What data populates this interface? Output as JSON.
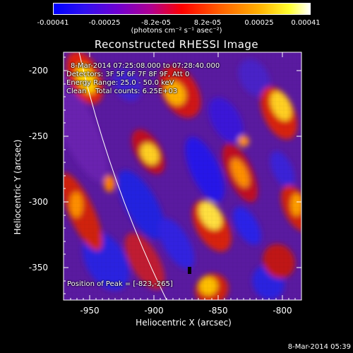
{
  "colorbar": {
    "tick_labels": [
      "-0.00041",
      "-0.00025",
      "-8.2e-05",
      "8.2e-05",
      "0.00025",
      "0.00041"
    ],
    "units": "(photons cm⁻² s⁻¹ asec⁻²)"
  },
  "plot": {
    "title": "Reconstructed RHESSI Image",
    "annotations": {
      "time_range": "8-Mar-2014 07:25:08.000 to 07:28:40.000",
      "detectors": "Detectors: 3F 5F 6F 7F 8F 9F, Att 0",
      "energy_range": "Energy Range: 25.0 - 50.0 keV",
      "method_counts": "Clean    Total counts: 6.25E+03",
      "peak_position": "Position of Peak = [-823,-265]"
    },
    "xlabel": "Heliocentric X (arcsec)",
    "ylabel": "Heliocentric Y (arcsec)",
    "xticks": [
      "-950",
      "-900",
      "-850",
      "-800"
    ],
    "yticks": [
      "-200",
      "-250",
      "-300",
      "-350"
    ],
    "timestamp": "8-Mar-2014 05:39"
  },
  "chart_data": {
    "type": "heatmap",
    "title": "Reconstructed RHESSI Image",
    "xlabel": "Heliocentric X (arcsec)",
    "ylabel": "Heliocentric Y (arcsec)",
    "xlim": [
      -975,
      -790
    ],
    "ylim": [
      -378,
      -190
    ],
    "xticks": [
      -950,
      -900,
      -850,
      -800
    ],
    "yticks": [
      -200,
      -250,
      -300,
      -350
    ],
    "colorbar_range": [
      -0.00041,
      0.00041
    ],
    "colorbar_ticks": [
      -0.00041,
      -0.00025,
      -8.2e-05,
      8.2e-05,
      0.00025,
      0.00041
    ],
    "colormap": [
      "#0000ff",
      "#7000d0",
      "#c00080",
      "#ff0000",
      "#ff8000",
      "#ffff00",
      "#ffffff"
    ],
    "peak_position": [
      -823,
      -265
    ],
    "peak_marker_value": -0.00041,
    "limb_line": true,
    "background": "#000000"
  }
}
